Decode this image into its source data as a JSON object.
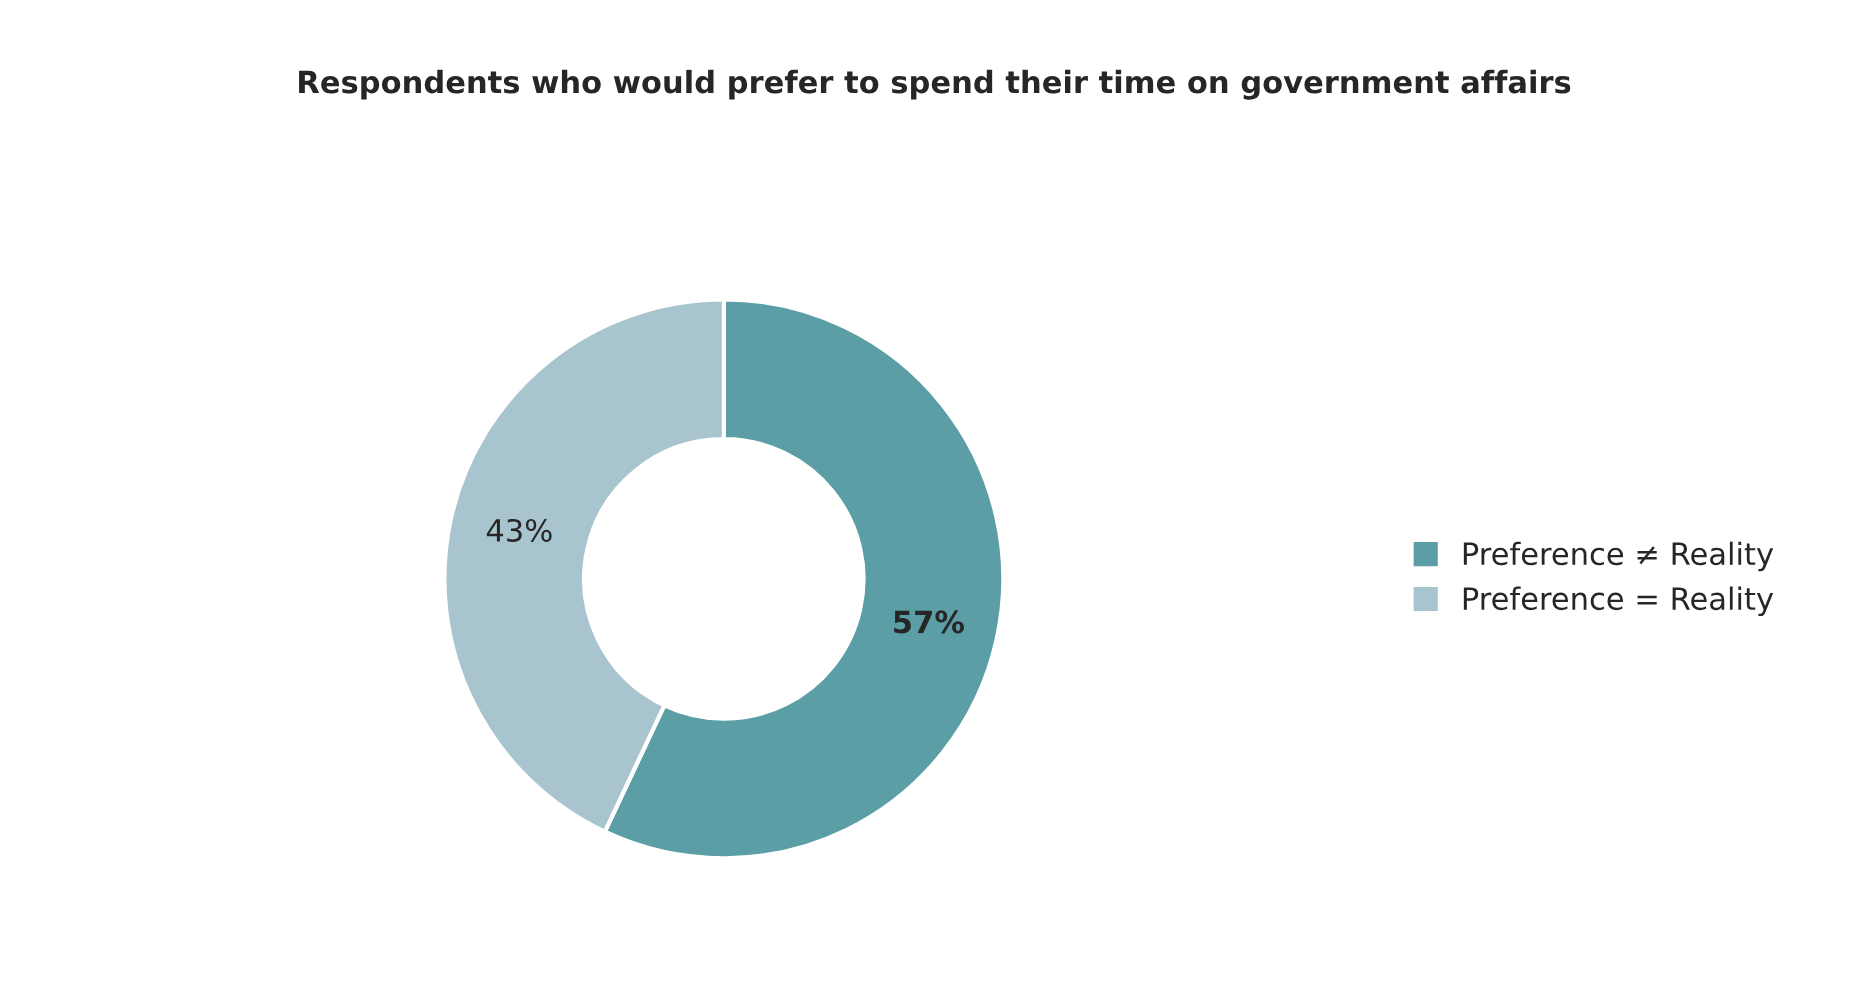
{
  "chart_data": {
    "type": "donut",
    "title": "Respondents who would prefer to spend their time on government affairs",
    "categories": [
      "Preference ≠ Reality",
      "Preference = Reality"
    ],
    "values": [
      57,
      43
    ],
    "colors": [
      "#5b9ea6",
      "#a8c5cf"
    ],
    "value_labels": [
      "57%",
      "43%"
    ],
    "legend": "right"
  }
}
